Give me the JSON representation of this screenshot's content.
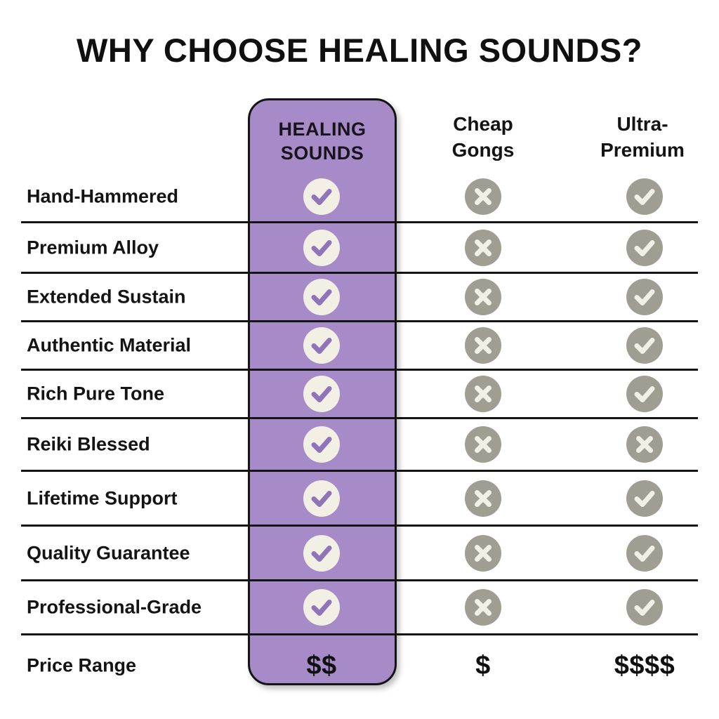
{
  "title": "WHY CHOOSE HEALING SOUNDS?",
  "chart_data": {
    "type": "table",
    "title": "WHY CHOOSE HEALING SOUNDS?",
    "columns": [
      {
        "id": "healing_sounds",
        "label": "HEALING\nSOUNDS",
        "highlighted": true
      },
      {
        "id": "cheap_gongs",
        "label": "Cheap\nGongs",
        "highlighted": false
      },
      {
        "id": "ultra_premium",
        "label": "Ultra-\nPremium",
        "highlighted": false
      }
    ],
    "rows": [
      {
        "feature": "Hand-Hammered",
        "values": [
          "yes",
          "no",
          "yes"
        ]
      },
      {
        "feature": "Premium Alloy",
        "values": [
          "yes",
          "no",
          "yes"
        ]
      },
      {
        "feature": "Extended Sustain",
        "values": [
          "yes",
          "no",
          "yes"
        ]
      },
      {
        "feature": "Authentic Material",
        "values": [
          "yes",
          "no",
          "yes"
        ]
      },
      {
        "feature": "Rich Pure Tone",
        "values": [
          "yes",
          "no",
          "yes"
        ]
      },
      {
        "feature": "Reiki Blessed",
        "values": [
          "yes",
          "no",
          "no"
        ]
      },
      {
        "feature": "Lifetime Support",
        "values": [
          "yes",
          "no",
          "yes"
        ]
      },
      {
        "feature": "Quality Guarantee",
        "values": [
          "yes",
          "no",
          "yes"
        ]
      },
      {
        "feature": "Professional-Grade",
        "values": [
          "yes",
          "no",
          "yes"
        ]
      },
      {
        "feature": "Price Range",
        "values": [
          "$$",
          "$",
          "$$$$"
        ]
      }
    ],
    "value_legend": {
      "yes": "check-icon",
      "no": "cross-icon"
    }
  },
  "colors": {
    "highlight_purple": "#a78bc9",
    "check_mark_purple": "#8f74ba",
    "icon_cream": "#f2efe4",
    "muted_gray": "#a09d92",
    "ink": "#161616"
  }
}
